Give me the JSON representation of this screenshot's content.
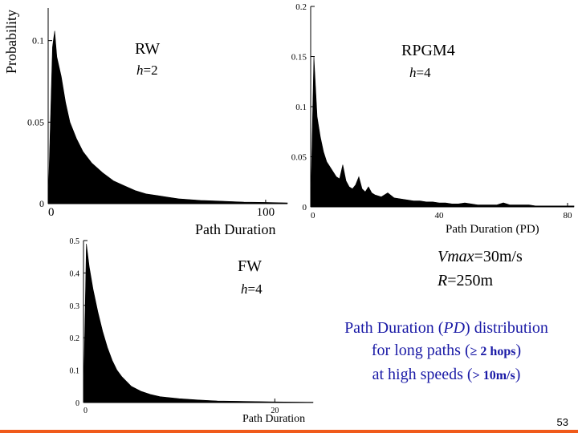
{
  "chart_data": [
    {
      "type": "area",
      "panel_title": "RW",
      "annotation": "h=2",
      "ylabel": "Probability",
      "xlabel": "Path Duration",
      "xlim": [
        0,
        110
      ],
      "ylim": [
        0,
        0.12
      ],
      "x_ticks": [
        0,
        100
      ],
      "y_ticks": [
        0,
        0.05,
        0.1
      ],
      "y_tick_labels": [
        "0",
        "0.05",
        "0.1"
      ],
      "x_tick_labels": [
        "0",
        "100"
      ],
      "x": [
        0,
        2,
        3,
        4,
        6,
        8,
        10,
        13,
        16,
        20,
        25,
        30,
        35,
        40,
        45,
        50,
        55,
        60,
        70,
        80,
        90,
        100,
        110
      ],
      "y": [
        0.0,
        0.096,
        0.106,
        0.09,
        0.078,
        0.062,
        0.05,
        0.04,
        0.032,
        0.025,
        0.019,
        0.014,
        0.011,
        0.008,
        0.006,
        0.005,
        0.004,
        0.003,
        0.002,
        0.0015,
        0.001,
        0.0008,
        0.0005
      ]
    },
    {
      "type": "area",
      "panel_title": "RPGM4",
      "annotation": "h=4",
      "xlabel": "Path Duration (PD)",
      "xlim": [
        0,
        82
      ],
      "ylim": [
        0,
        0.2
      ],
      "x_ticks": [
        0,
        40,
        80
      ],
      "y_ticks": [
        0,
        0.05,
        0.1,
        0.15,
        0.2
      ],
      "y_tick_labels": [
        "0",
        "0.05",
        "0.1",
        "0.15",
        "0.2"
      ],
      "x_tick_labels": [
        "0",
        "40",
        "80"
      ],
      "x": [
        0,
        1,
        2,
        3,
        4,
        5,
        6,
        7,
        8,
        9,
        10,
        11,
        12,
        13,
        14,
        15,
        16,
        17,
        18,
        19,
        20,
        22,
        24,
        26,
        28,
        30,
        32,
        34,
        36,
        38,
        40,
        42,
        44,
        46,
        48,
        50,
        52,
        54,
        56,
        58,
        60,
        62,
        64,
        66,
        68,
        70,
        72,
        74,
        76,
        78,
        80,
        82
      ],
      "y": [
        0.0,
        0.15,
        0.09,
        0.07,
        0.055,
        0.045,
        0.04,
        0.035,
        0.03,
        0.028,
        0.042,
        0.026,
        0.02,
        0.018,
        0.022,
        0.03,
        0.018,
        0.015,
        0.02,
        0.014,
        0.012,
        0.01,
        0.014,
        0.009,
        0.008,
        0.007,
        0.006,
        0.006,
        0.005,
        0.005,
        0.004,
        0.004,
        0.003,
        0.003,
        0.004,
        0.003,
        0.002,
        0.002,
        0.002,
        0.002,
        0.004,
        0.002,
        0.002,
        0.002,
        0.002,
        0.001,
        0.001,
        0.001,
        0.001,
        0.001,
        0.001,
        0.001
      ]
    },
    {
      "type": "area",
      "panel_title": "FW",
      "annotation": "h=4",
      "xlabel": "Path Duration",
      "xlim": [
        0,
        24
      ],
      "ylim": [
        0,
        0.5
      ],
      "x_ticks": [
        0,
        20
      ],
      "y_ticks": [
        0,
        0.1,
        0.2,
        0.3,
        0.4,
        0.5
      ],
      "y_tick_labels": [
        "0",
        "0.1",
        "0.2",
        "0.3",
        "0.4",
        "0.5"
      ],
      "x_tick_labels": [
        "0",
        "20"
      ],
      "x": [
        0,
        0.3,
        0.6,
        1,
        1.5,
        2,
        2.5,
        3,
        3.5,
        4,
        5,
        6,
        7,
        8,
        10,
        12,
        14,
        16,
        18,
        20,
        22,
        24
      ],
      "y": [
        0.0,
        0.49,
        0.42,
        0.35,
        0.28,
        0.22,
        0.17,
        0.13,
        0.1,
        0.08,
        0.05,
        0.035,
        0.025,
        0.018,
        0.012,
        0.008,
        0.005,
        0.004,
        0.003,
        0.002,
        0.0015,
        0.001
      ]
    }
  ],
  "conditions": {
    "vmax_var": "Vmax",
    "vmax_value": "=30m/s",
    "r_var": "R",
    "r_value": "=250m"
  },
  "caption": {
    "line1_a": "Path Duration (",
    "line1_pd": "PD",
    "line1_b": ") distribution",
    "line2_a": "for long paths (",
    "line2_sym": "≥ 2 hops",
    "line2_b": ")",
    "line3_a": "at high speeds (",
    "line3_sym": "> 10m/s",
    "line3_b": ")"
  },
  "page_number": "53",
  "colors": {
    "fill": "#000000",
    "caption_text": "#1a1aa6",
    "bottom_bar": "#f05a1a"
  }
}
